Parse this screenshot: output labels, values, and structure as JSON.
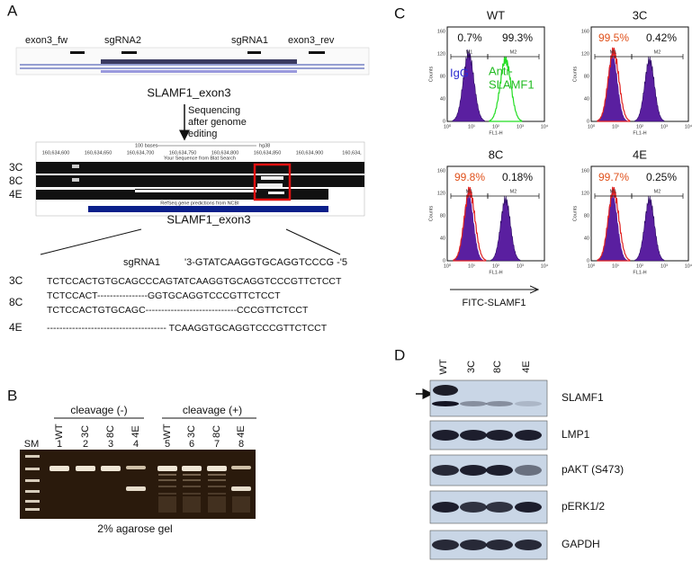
{
  "panel_a": {
    "label": "A",
    "track_labels": [
      "exon3_fw",
      "sgRNA2",
      "sgRNA1",
      "exon3_rev"
    ],
    "gene_label": "SLAMF1_exon3",
    "arrow_note": [
      "Sequencing",
      "after genome",
      "editing"
    ],
    "coordinates": [
      "160,634,600",
      "160,634,650",
      "160,634,700",
      "160,634,750",
      "160,634,800",
      "160,634,850",
      "160,634,900",
      "160,634,"
    ],
    "scale_label": "100 bases",
    "assembly": "hg38",
    "blat_track": "Your Sequence from Blat Search",
    "refseq_track": "RefSeq gene predictions from NCBI",
    "clones": [
      "3C",
      "8C",
      "4E"
    ],
    "exon_bar_label": "SLAMF1_exon3",
    "guide_name": "sgRNA1",
    "guide_sequence": "'3-GTATCAAGGTGCAGGTCCCG -'5",
    "alignments": [
      {
        "clone": "3C",
        "sequences": [
          "TCTCCACTGTGCAGCCCAGTATCAAGGTGCAGGTCCCGTTCTCCT"
        ]
      },
      {
        "clone": "8C",
        "sequences": [
          "TCTCCACT----------------GGTGCAGGTCCCGTTCTCCT",
          "TCTCCACTGTGCAGC-----------------------------CCCGTTCTCCT"
        ]
      },
      {
        "clone": "4E",
        "sequences": [
          "-------------------------------------- TCAAGGTGCAGGTCCCGTTCTCCT"
        ]
      }
    ]
  },
  "panel_b": {
    "label": "B",
    "groups": [
      "cleavage (-)",
      "cleavage (+)"
    ],
    "marker": "SM",
    "lanes": [
      {
        "name": "WT",
        "number": "1"
      },
      {
        "name": "3C",
        "number": "2"
      },
      {
        "name": "8C",
        "number": "3"
      },
      {
        "name": "4E",
        "number": "4"
      },
      {
        "name": "WT",
        "number": "5"
      },
      {
        "name": "3C",
        "number": "6"
      },
      {
        "name": "8C",
        "number": "7"
      },
      {
        "name": "4E",
        "number": "8"
      }
    ],
    "caption": "2% agarose gel"
  },
  "panel_c": {
    "label": "C",
    "plots": [
      {
        "title": "WT",
        "left_percent": "0.7%",
        "right_percent": "99.3%"
      },
      {
        "title": "3C",
        "left_percent": "99.5%",
        "right_percent": "0.42%"
      },
      {
        "title": "8C",
        "left_percent": "99.8%",
        "right_percent": "0.18%"
      },
      {
        "title": "4E",
        "left_percent": "99.7%",
        "right_percent": "0.25%"
      }
    ],
    "legend_igg": "IgG",
    "legend_anti": [
      "Anti-",
      "SLAMF1"
    ],
    "gates": [
      "M1",
      "M2"
    ],
    "y_axis_label": "Counts",
    "x_axis_label": "FL1-H",
    "y_ticks": [
      "0",
      "40",
      "80",
      "120",
      "160"
    ],
    "x_ticks": [
      "10⁰",
      "10¹",
      "10²",
      "10³",
      "10⁴"
    ],
    "axis_caption": "FITC-SLAMF1"
  },
  "panel_d": {
    "label": "D",
    "lanes": [
      "WT",
      "3C",
      "8C",
      "4E"
    ],
    "proteins": [
      "SLAMF1",
      "LMP1",
      "pAKT (S473)",
      "pERK1/2",
      "GAPDH"
    ]
  }
}
